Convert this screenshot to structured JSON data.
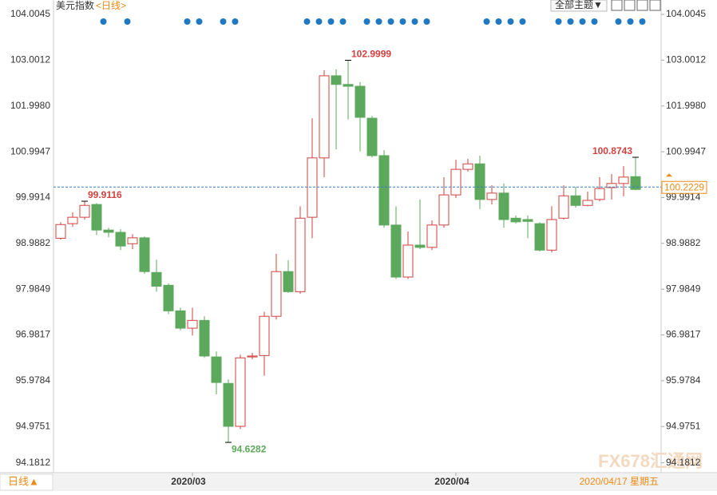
{
  "header": {
    "title": "美元指数",
    "period": "<日线>",
    "theme_button": "全部主题▼",
    "period_button": "日线▲",
    "date": "2020/04/17 星期五",
    "watermark": "FX678汇通网"
  },
  "chart_data": {
    "type": "candlestick",
    "categories": [
      null,
      null,
      null,
      null,
      null,
      null,
      null,
      null,
      null,
      null,
      null,
      "2020/03",
      null,
      null,
      null,
      null,
      null,
      null,
      null,
      null,
      null,
      null,
      null,
      null,
      null,
      null,
      null,
      null,
      null,
      null,
      null,
      null,
      null,
      "2020/04",
      null,
      null,
      null,
      null,
      null,
      null,
      null,
      null,
      null,
      null,
      null,
      null,
      null,
      null,
      null
    ],
    "open": [
      99.1,
      99.42,
      99.56,
      99.84,
      99.28,
      99.23,
      98.98,
      99.11,
      98.35,
      98.07,
      97.51,
      97.13,
      97.3,
      96.5,
      95.92,
      94.98,
      96.5,
      96.53,
      97.39,
      98.37,
      97.93,
      99.56,
      100.86,
      102.66,
      102.47,
      102.43,
      101.73,
      100.91,
      99.39,
      98.25,
      98.95,
      98.9,
      99.39,
      100.05,
      100.61,
      100.73,
      99.95,
      100.09,
      99.54,
      99.51,
      99.42,
      98.84,
      99.54,
      100.03,
      99.82,
      99.95,
      100.21,
      100.3,
      100.45
    ],
    "high": [
      99.45,
      99.67,
      99.9116,
      99.87,
      99.33,
      99.3,
      99.19,
      99.14,
      98.63,
      98.11,
      97.58,
      97.58,
      97.39,
      96.62,
      96.01,
      96.55,
      96.59,
      97.49,
      98.76,
      98.62,
      99.8,
      101.73,
      102.78,
      102.8,
      102.9999,
      102.52,
      101.78,
      101.03,
      99.8,
      99.25,
      99.95,
      99.49,
      100.44,
      100.82,
      100.84,
      100.91,
      100.26,
      100.3,
      99.6,
      99.6,
      99.45,
      99.8,
      100.26,
      100.23,
      100.12,
      100.44,
      100.51,
      100.68,
      100.8743
    ],
    "low": [
      99.07,
      99.35,
      99.51,
      99.17,
      99.12,
      98.84,
      98.86,
      98.32,
      97.93,
      97.44,
      97.08,
      96.97,
      96.48,
      95.68,
      94.6282,
      94.92,
      96.45,
      96.09,
      97.32,
      97.9,
      97.88,
      99.1,
      100.44,
      101.05,
      101.7,
      101.0,
      100.87,
      99.33,
      98.21,
      98.21,
      98.86,
      98.84,
      99.33,
      99.98,
      100.56,
      99.74,
      99.84,
      99.33,
      99.42,
      99.1,
      98.81,
      98.79,
      99.51,
      99.77,
      99.8,
      99.91,
      99.95,
      100.02,
      100.15
    ],
    "close": [
      99.4,
      99.56,
      99.82,
      99.28,
      99.23,
      98.93,
      99.11,
      98.37,
      98.05,
      97.51,
      97.13,
      97.3,
      96.52,
      95.94,
      94.98,
      96.48,
      96.52,
      97.39,
      98.37,
      97.93,
      99.54,
      100.86,
      102.66,
      102.47,
      102.43,
      101.75,
      100.91,
      99.39,
      98.25,
      98.95,
      98.9,
      99.39,
      100.05,
      100.61,
      100.73,
      99.95,
      100.09,
      99.51,
      99.46,
      99.47,
      98.84,
      99.51,
      100.03,
      99.82,
      99.93,
      100.19,
      100.3,
      100.44,
      100.17
    ],
    "last": 100.2229,
    "up_color": "#d0413f",
    "down_color": "#5ca85c",
    "last_color": "#ec8a14",
    "ylim": [
      94.0,
      104.32
    ],
    "yticks": [
      104.0045,
      103.0012,
      {
        "value": 101.998,
        "label": "101.9980"
      },
      100.9947,
      99.9914,
      98.9882,
      97.9849,
      96.9817,
      95.9784,
      94.9751,
      94.1812
    ]
  }
}
